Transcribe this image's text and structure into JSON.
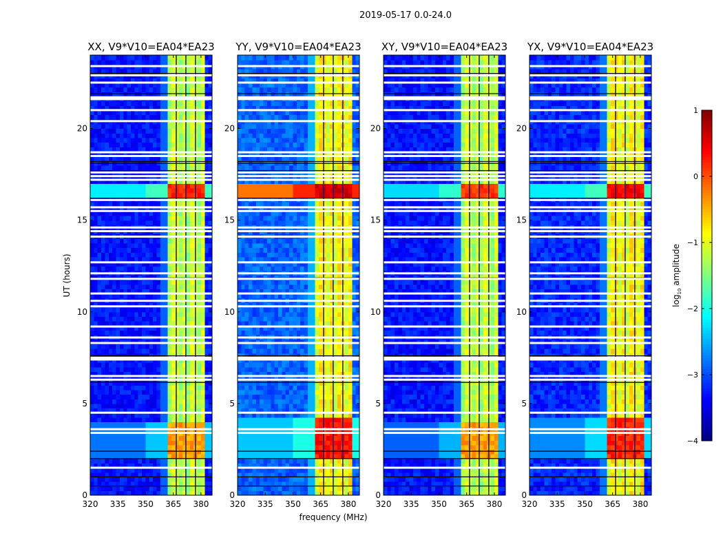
{
  "figure_title": "2019-05-17 0.0-24.0",
  "colors": {
    "frame": "#000000",
    "flag": "#ffffff",
    "background": "#ffffff"
  },
  "chart_data": {
    "type": "heatmap",
    "colormap": "jet",
    "xlabel": "frequency (MHz)",
    "ylabel": "UT (hours)",
    "xlim": [
      320,
      386
    ],
    "ylim": [
      0,
      24
    ],
    "xticks": [
      320,
      335,
      350,
      365,
      380
    ],
    "yticks": [
      0,
      5,
      10,
      15,
      20
    ],
    "freq_step_mhz": 2,
    "time_step_hours": 0.25,
    "colorbar": {
      "label_prefix": "log",
      "label_sub": "10",
      "label_suffix": " amplitude",
      "range": [
        -4,
        1
      ],
      "ticks": [
        1,
        0,
        -1,
        -2,
        -3,
        -4
      ]
    },
    "band": {
      "start_mhz": 362,
      "end_mhz": 382,
      "dark_channels_mhz": [
        366.6,
        371.8,
        377
      ],
      "quiet_level": -1.3
    },
    "flagged_hours": [
      23.4,
      22.9,
      22.5,
      21.7,
      21.6,
      21.0,
      20.4,
      18.7,
      18.5,
      17.6,
      17.4,
      17.2,
      16.1,
      15.7,
      15.5,
      14.6,
      14.4,
      14.1,
      12.7,
      12.1,
      11.8,
      11.0,
      10.6,
      10.3,
      9.2,
      8.6,
      8.3,
      7.5,
      7.4,
      6.5,
      6.3,
      4.5,
      3.6,
      3.4,
      1.5
    ],
    "dark_hours": [
      23.0,
      21.9,
      18.2,
      18.1,
      17.7,
      16.2,
      11.85,
      7.6,
      6.15,
      2.4,
      2.0,
      1.0,
      0.5
    ],
    "panels": [
      {
        "title": "XX, V9*V10=EA04*EA23",
        "background_level": -3.3,
        "band_level": -1.3,
        "events": [
          {
            "t0": 16.25,
            "t1": 16.9,
            "band": 0.2,
            "wide": -2.2
          },
          {
            "t0": 2.0,
            "t1": 4.0,
            "band": -0.4,
            "wide": -2.8
          }
        ]
      },
      {
        "title": "YY, V9*V10=EA04*EA23",
        "background_level": -2.9,
        "band_level": -1.0,
        "events": [
          {
            "t0": 16.25,
            "t1": 16.9,
            "band": 0.6,
            "wide": -0.2
          },
          {
            "t0": 2.0,
            "t1": 4.2,
            "band": 0.3,
            "wide": -2.4
          }
        ]
      },
      {
        "title": "XY, V9*V10=EA04*EA23",
        "background_level": -3.3,
        "band_level": -1.3,
        "events": [
          {
            "t0": 16.25,
            "t1": 16.9,
            "band": 0.1,
            "wide": -2.3
          },
          {
            "t0": 2.0,
            "t1": 4.0,
            "band": -0.4,
            "wide": -2.9
          }
        ]
      },
      {
        "title": "YX, V9*V10=EA04*EA23",
        "background_level": -3.2,
        "band_level": -1.0,
        "events": [
          {
            "t0": 16.25,
            "t1": 16.9,
            "band": 0.4,
            "wide": -2.2
          },
          {
            "t0": 2.0,
            "t1": 4.2,
            "band": 0.2,
            "wide": -2.7
          }
        ]
      }
    ]
  }
}
